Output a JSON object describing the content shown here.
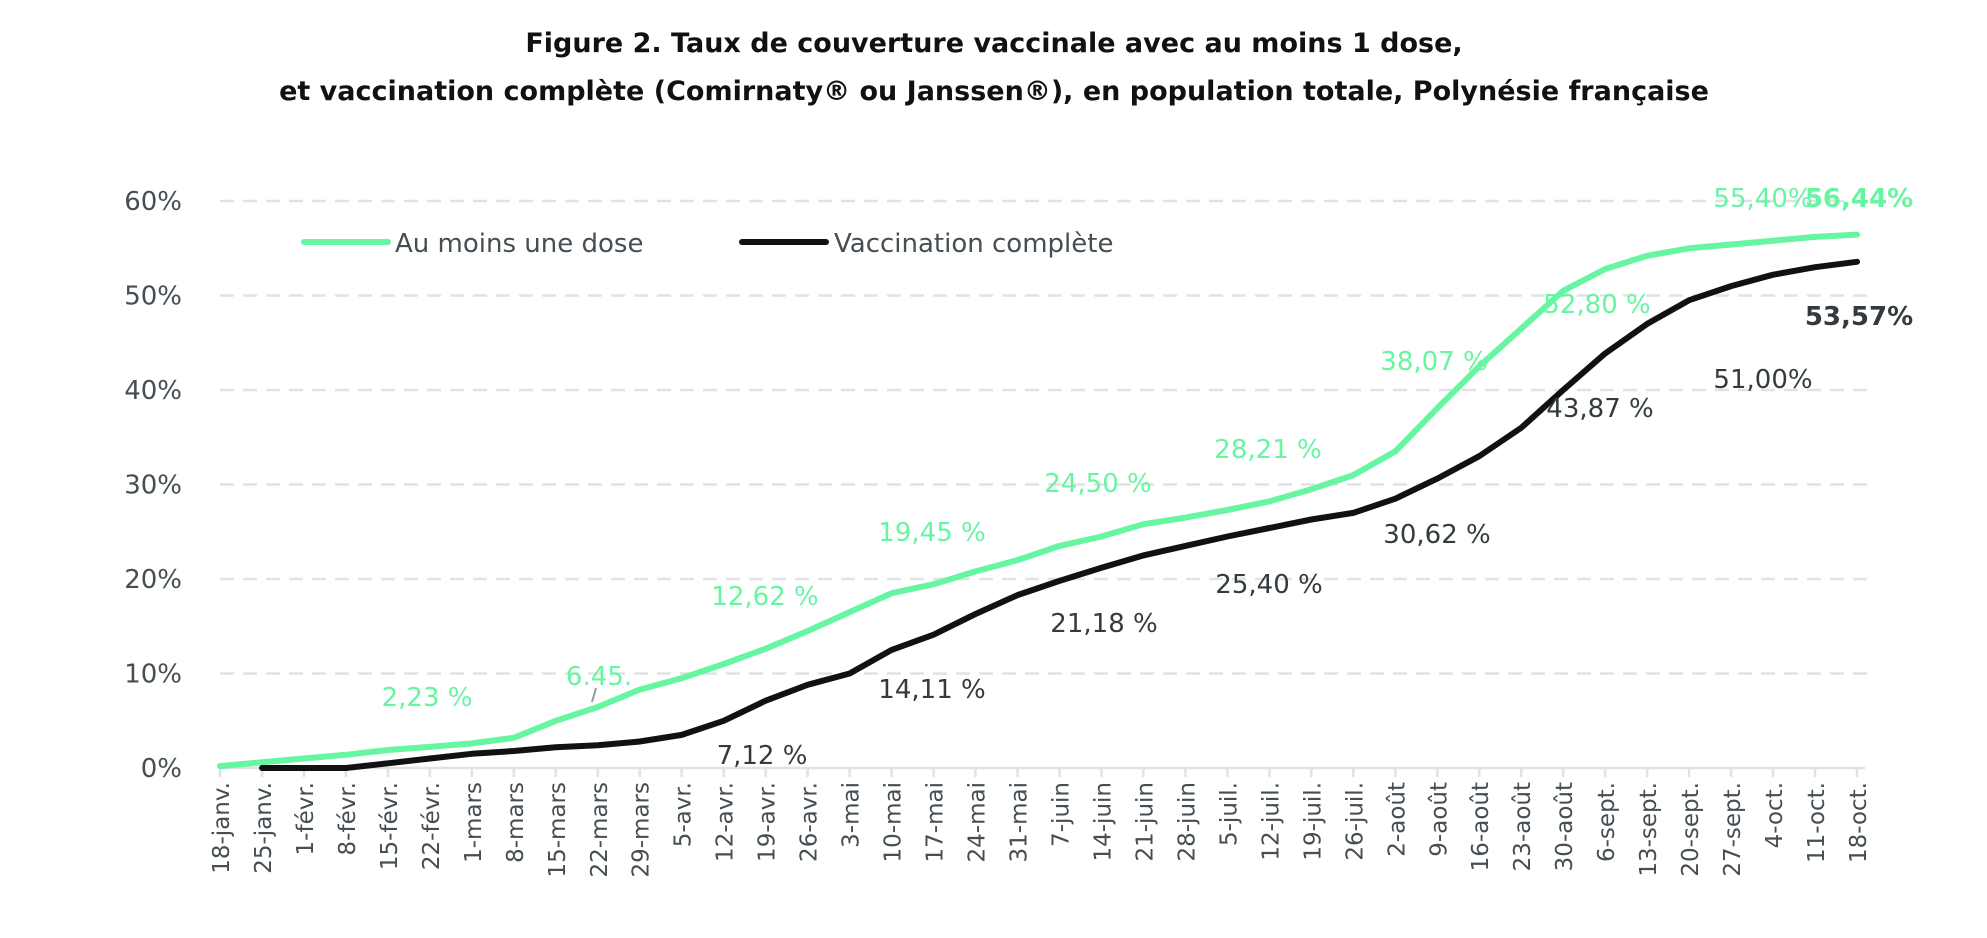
{
  "chart_data": {
    "type": "line",
    "title": [
      "Figure 2. Taux de couverture vaccinale avec au moins 1 dose,",
      "et vaccination complète (Comirnaty® ou Janssen®), en population totale, Polynésie française"
    ],
    "xlabel": "",
    "ylabel": "",
    "ylim": [
      0,
      60
    ],
    "yticks": [
      "0%",
      "10%",
      "20%",
      "30%",
      "40%",
      "50%",
      "60%"
    ],
    "grid": "horizontal dashed",
    "legend_position": "top-left",
    "categories": [
      "18-janv.",
      "25-janv.",
      "1-févr.",
      "8-févr.",
      "15-févr.",
      "22-févr.",
      "1-mars",
      "8-mars",
      "15-mars",
      "22-mars",
      "29-mars",
      "5-avr.",
      "12-avr.",
      "19-avr.",
      "26-avr.",
      "3-mai",
      "10-mai",
      "17-mai",
      "24-mai",
      "31-mai",
      "7-juin",
      "14-juin",
      "21-juin",
      "28-juin",
      "5-juil.",
      "12-juil.",
      "19-juil.",
      "26-juil.",
      "2-août",
      "9-août",
      "16-août",
      "23-août",
      "30-août",
      "6-sept.",
      "13-sept.",
      "20-sept.",
      "27-sept.",
      "4-oct.",
      "11-oct.",
      "18-oct."
    ],
    "series": [
      {
        "name": "Au moins une dose",
        "color": "#66f5a0",
        "values": [
          0.2,
          0.6,
          1.0,
          1.4,
          1.9,
          2.23,
          2.6,
          3.2,
          5.0,
          6.45,
          8.3,
          9.5,
          11.0,
          12.62,
          14.5,
          16.5,
          18.5,
          19.45,
          20.8,
          22.0,
          23.5,
          24.5,
          25.8,
          26.5,
          27.3,
          28.21,
          29.5,
          31.0,
          33.5,
          38.07,
          42.5,
          46.5,
          50.5,
          52.8,
          54.2,
          55.0,
          55.4,
          55.8,
          56.2,
          56.44
        ],
        "labels": [
          "2,23 %",
          "6.45.",
          "12,62 %",
          "19,45 %",
          "24,50 %",
          "28,21 %",
          "38,07 %",
          "52,80 %",
          "55,40%",
          "56,44%"
        ]
      },
      {
        "name": "Vaccination complète",
        "color": "#111111",
        "values": [
          null,
          0,
          0,
          0,
          0.5,
          1.0,
          1.5,
          1.8,
          2.2,
          2.4,
          2.8,
          3.5,
          5.0,
          7.12,
          8.8,
          10.0,
          12.5,
          14.11,
          16.3,
          18.3,
          19.8,
          21.18,
          22.5,
          23.5,
          24.5,
          25.4,
          26.3,
          27.0,
          28.5,
          30.62,
          33.0,
          36.0,
          40.0,
          43.87,
          47.0,
          49.5,
          51.0,
          52.2,
          53.0,
          53.57
        ],
        "labels": [
          "7,12 %",
          "14,11 %",
          "21,18 %",
          "25,40 %",
          "30,62 %",
          "43,87 %",
          "51,00%",
          "53,57%"
        ]
      }
    ]
  }
}
